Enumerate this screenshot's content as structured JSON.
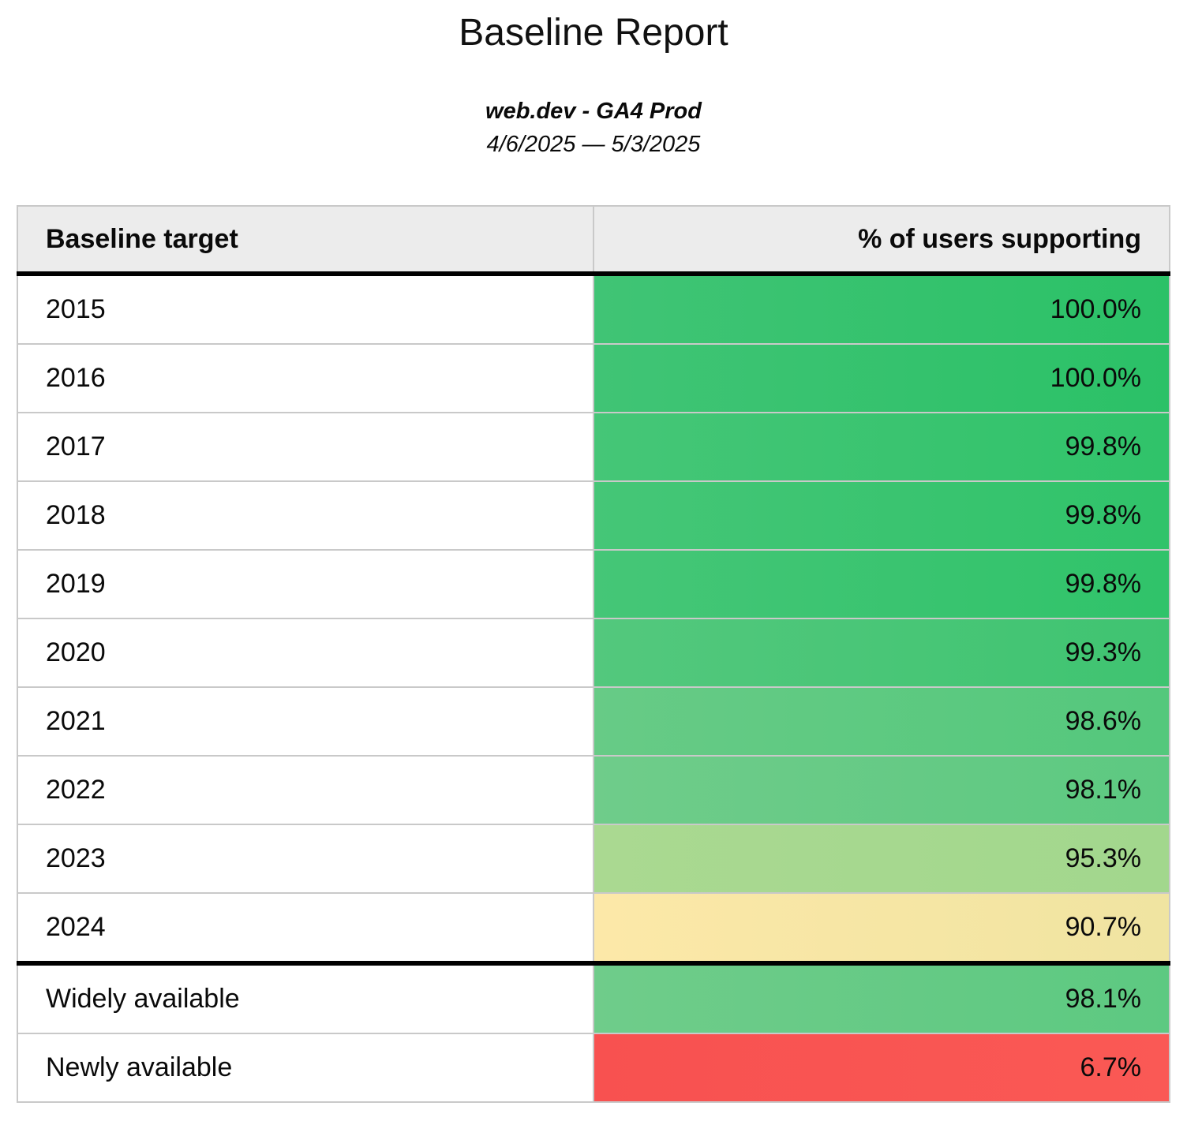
{
  "title": "Baseline Report",
  "subtitle": "web.dev - GA4 Prod",
  "date_range": "4/6/2025 — 5/3/2025",
  "table": {
    "headers": {
      "target": "Baseline target",
      "support": "% of users supporting"
    },
    "rows": [
      {
        "target": "2015",
        "support": "100.0%",
        "color_left": "#40c475",
        "color_right": "#2bc167",
        "separator_above": false
      },
      {
        "target": "2016",
        "support": "100.0%",
        "color_left": "#40c475",
        "color_right": "#2bc167",
        "separator_above": false
      },
      {
        "target": "2017",
        "support": "99.8%",
        "color_left": "#45c677",
        "color_right": "#30c36a",
        "separator_above": false
      },
      {
        "target": "2018",
        "support": "99.8%",
        "color_left": "#45c677",
        "color_right": "#30c36a",
        "separator_above": false
      },
      {
        "target": "2019",
        "support": "99.8%",
        "color_left": "#45c677",
        "color_right": "#30c36a",
        "separator_above": false
      },
      {
        "target": "2020",
        "support": "99.3%",
        "color_left": "#53c87d",
        "color_right": "#3fc471",
        "separator_above": false
      },
      {
        "target": "2021",
        "support": "98.6%",
        "color_left": "#67cb86",
        "color_right": "#54c87c",
        "separator_above": false
      },
      {
        "target": "2022",
        "support": "98.1%",
        "color_left": "#6fcc8a",
        "color_right": "#5dc981",
        "separator_above": false
      },
      {
        "target": "2023",
        "support": "95.3%",
        "color_left": "#aad991",
        "color_right": "#a2d78d",
        "separator_above": false
      },
      {
        "target": "2024",
        "support": "90.7%",
        "color_left": "#fce8a8",
        "color_right": "#f0e4a1",
        "separator_above": false
      },
      {
        "target": "Widely available",
        "support": "98.1%",
        "color_left": "#6fcc8a",
        "color_right": "#5dc981",
        "separator_above": true
      },
      {
        "target": "Newly available",
        "support": "6.7%",
        "color_left": "#f85150",
        "color_right": "#fa5955",
        "separator_above": false
      }
    ]
  },
  "colors": {
    "header_bg": "#ececec",
    "border": "#c9c9c9",
    "separator": "#000000",
    "green_full": "#35c46f",
    "yellow_warn": "#f6e6a4",
    "red_low": "#f95452"
  }
}
